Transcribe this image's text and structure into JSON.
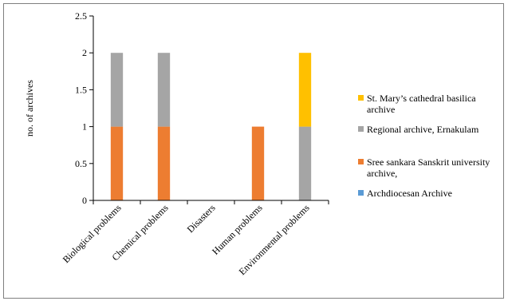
{
  "chart_data": {
    "type": "bar",
    "stacked": true,
    "categories": [
      "Biological problems",
      "Chemical problems",
      "Disasters",
      "Human problems",
      "Environmental problems"
    ],
    "ylabel": "no. of archives",
    "ylim": [
      0,
      2.5
    ],
    "yticks": [
      "0",
      "0.5",
      "1",
      "1.5",
      "2",
      "2.5"
    ],
    "grid": false,
    "legend_position": "right",
    "series": [
      {
        "name": "Archdiocesan Archive",
        "color": "#5b9bd5",
        "values": [
          0,
          0,
          0,
          0,
          0
        ]
      },
      {
        "name": "Sree sankara Sanskrit university archive,",
        "color": "#ed7d31",
        "values": [
          1,
          1,
          0,
          1,
          0
        ]
      },
      {
        "name": "Regional archive, Ernakulam",
        "color": "#a5a5a5",
        "values": [
          1,
          1,
          0,
          0,
          1
        ]
      },
      {
        "name": "St. Mary’s cathedral basilica archive",
        "color": "#ffc000",
        "values": [
          0,
          0,
          0,
          0,
          1
        ]
      }
    ]
  }
}
